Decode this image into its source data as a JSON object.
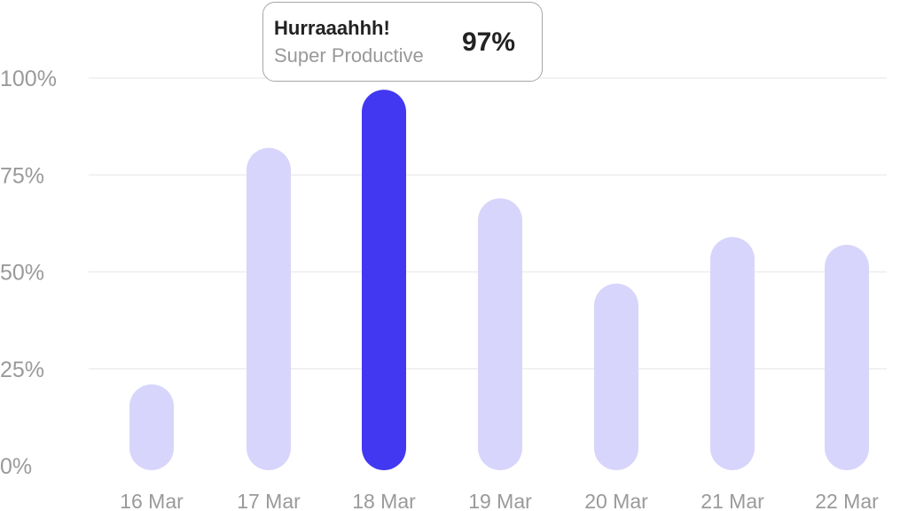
{
  "chart_data": {
    "type": "bar",
    "categories": [
      "16 Mar",
      "17 Mar",
      "18 Mar",
      "19 Mar",
      "20 Mar",
      "21 Mar",
      "22 Mar"
    ],
    "values": [
      21,
      82,
      97,
      69,
      47,
      59,
      57
    ],
    "ylim": [
      0,
      100
    ],
    "yticks": [
      "0%",
      "25%",
      "50%",
      "75%",
      "100%"
    ],
    "grid": true,
    "highlight_index": 2,
    "colors": {
      "bar": "#d8d5fc",
      "highlight": "#4338f2",
      "grid": "#eeeeee",
      "tick_label": "#9a9a9a"
    },
    "tooltip": {
      "title": "Hurraaahhh!",
      "subtitle": "Super Productive",
      "value": "97%"
    }
  }
}
